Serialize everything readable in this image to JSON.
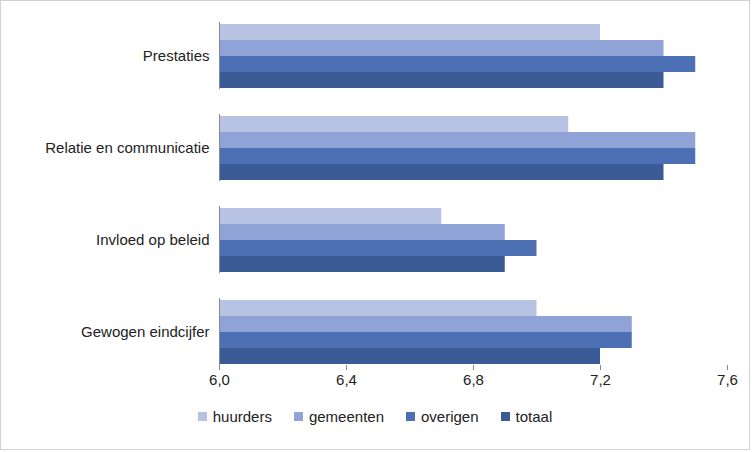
{
  "chart_data": {
    "type": "bar",
    "orientation": "horizontal",
    "categories": [
      "Prestaties",
      "Relatie en communicatie",
      "Invloed op beleid",
      "Gewogen eindcijfer"
    ],
    "series": [
      {
        "name": "huurders",
        "color": "#b8c3e3",
        "values": [
          7.2,
          7.1,
          6.7,
          7.0
        ]
      },
      {
        "name": "gemeenten",
        "color": "#8fa3d6",
        "values": [
          7.4,
          7.5,
          6.9,
          7.3
        ]
      },
      {
        "name": "overigen",
        "color": "#4d70b5",
        "values": [
          7.5,
          7.5,
          7.0,
          7.3
        ]
      },
      {
        "name": "totaal",
        "color": "#3a5b96",
        "values": [
          7.4,
          7.4,
          6.9,
          7.2
        ]
      }
    ],
    "xlim": [
      6.0,
      7.6
    ],
    "xticks": [
      {
        "value": 6.0,
        "label": "6,0"
      },
      {
        "value": 6.4,
        "label": "6,4"
      },
      {
        "value": 6.8,
        "label": "6,8"
      },
      {
        "value": 7.2,
        "label": "7,2"
      },
      {
        "value": 7.6,
        "label": "7,6"
      }
    ],
    "grid": false,
    "legend": "bottom"
  }
}
